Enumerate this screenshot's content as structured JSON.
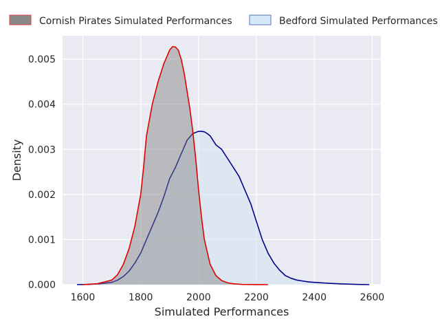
{
  "chart_data": {
    "type": "area",
    "title": "",
    "xlabel": "Simulated Performances",
    "ylabel": "Density",
    "xlim": [
      1530,
      2630
    ],
    "ylim": [
      0,
      0.00552
    ],
    "xticks": [
      1600,
      1800,
      2000,
      2200,
      2400,
      2600
    ],
    "yticks": [
      0.0,
      0.001,
      0.002,
      0.003,
      0.004,
      0.005
    ],
    "xtick_labels": [
      "1600",
      "1800",
      "2000",
      "2200",
      "2400",
      "2600"
    ],
    "ytick_labels": [
      "0.000",
      "0.001",
      "0.002",
      "0.003",
      "0.004",
      "0.005"
    ],
    "grid": true,
    "legend_position": "top",
    "series": [
      {
        "name": "Cornish Pirates Simulated Performances",
        "line_color": "#e00000",
        "fill_color": "#7f7f7f",
        "fill_opacity": 0.45,
        "legend_fill": "#888888",
        "legend_edge": "#e04040",
        "x": [
          1600,
          1650,
          1700,
          1720,
          1740,
          1760,
          1780,
          1800,
          1810,
          1820,
          1840,
          1860,
          1880,
          1900,
          1910,
          1920,
          1930,
          1940,
          1950,
          1960,
          1970,
          1980,
          1990,
          2000,
          2010,
          2020,
          2040,
          2060,
          2080,
          2100,
          2120,
          2150,
          2200,
          2240
        ],
        "y": [
          0.0,
          2e-05,
          0.0001,
          0.00022,
          0.00045,
          0.0008,
          0.0013,
          0.002,
          0.0026,
          0.0033,
          0.004,
          0.0045,
          0.0049,
          0.0052,
          0.00528,
          0.00527,
          0.0052,
          0.005,
          0.0047,
          0.0043,
          0.0039,
          0.0034,
          0.0028,
          0.0021,
          0.0015,
          0.001,
          0.00045,
          0.0002,
          9e-05,
          4e-05,
          2e-05,
          5e-06,
          1e-06,
          0.0
        ]
      },
      {
        "name": "Bedford Simulated Performances",
        "line_color": "#00008b",
        "fill_color": "#cfe3f3",
        "fill_opacity": 0.55,
        "legend_fill": "#d6e9f8",
        "legend_edge": "#5b6fc2",
        "x": [
          1580,
          1620,
          1660,
          1700,
          1720,
          1740,
          1760,
          1780,
          1800,
          1820,
          1840,
          1860,
          1880,
          1900,
          1920,
          1940,
          1960,
          1980,
          2000,
          2010,
          2020,
          2030,
          2040,
          2060,
          2080,
          2100,
          2120,
          2140,
          2160,
          2180,
          2200,
          2220,
          2240,
          2260,
          2280,
          2300,
          2320,
          2340,
          2360,
          2380,
          2400,
          2450,
          2500,
          2550,
          2590
        ],
        "y": [
          0.0,
          5e-06,
          2e-05,
          5e-05,
          0.0001,
          0.00018,
          0.0003,
          0.00048,
          0.0007,
          0.001,
          0.0013,
          0.0016,
          0.00195,
          0.00235,
          0.0026,
          0.0029,
          0.0032,
          0.00335,
          0.0034,
          0.0034,
          0.00339,
          0.00335,
          0.0033,
          0.0031,
          0.003,
          0.0028,
          0.0026,
          0.0024,
          0.0021,
          0.0018,
          0.0014,
          0.001,
          0.0007,
          0.00048,
          0.00032,
          0.0002,
          0.00014,
          0.0001,
          8e-05,
          6e-05,
          5e-05,
          3e-05,
          1.5e-05,
          5e-06,
          0.0
        ]
      }
    ]
  }
}
